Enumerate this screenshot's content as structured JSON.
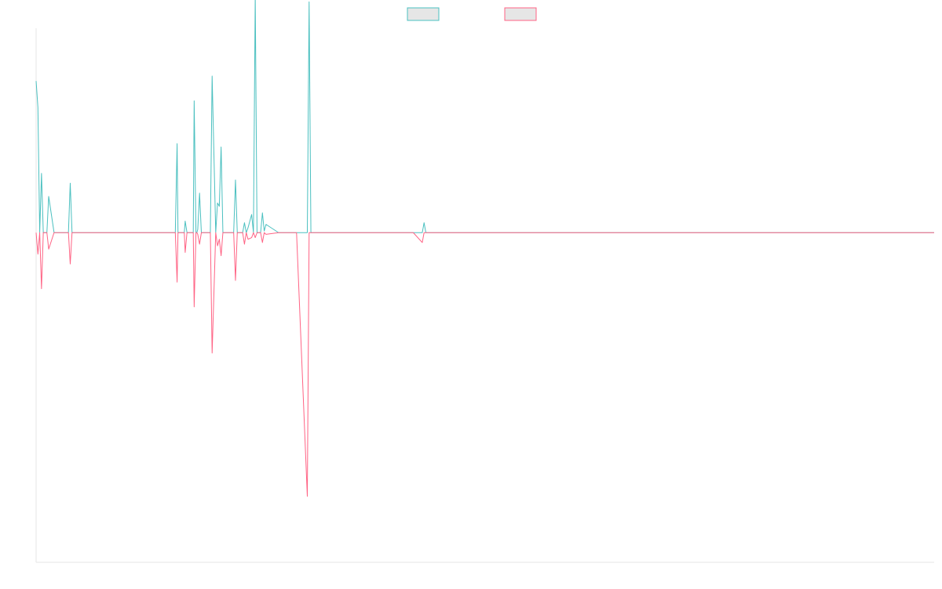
{
  "chart_data": {
    "type": "line",
    "title": "",
    "xlabel": "",
    "ylabel": "",
    "xlim": [
      0,
      1000
    ],
    "ylim": [
      -1.0,
      0.62
    ],
    "grid": false,
    "legend_position": "top-center",
    "series": [
      {
        "color": "#4bc0c0",
        "x": [
          0,
          2,
          4,
          6,
          8,
          12,
          14,
          20,
          22,
          24,
          26,
          36,
          38,
          40,
          42,
          60,
          62,
          64,
          155,
          157,
          158,
          160,
          165,
          166,
          168,
          170,
          175,
          176,
          178,
          179,
          180,
          182,
          184,
          186,
          190,
          192,
          194,
          196,
          200,
          202,
          204,
          206,
          208,
          210,
          212,
          216,
          218,
          220,
          222,
          224,
          226,
          230,
          232,
          234,
          236,
          240,
          242,
          244,
          246,
          250,
          252,
          254,
          256,
          270,
          272,
          274,
          278,
          282,
          284,
          286,
          288,
          290,
          302,
          304,
          306,
          308,
          310,
          312,
          314,
          320,
          372,
          374,
          376,
          420,
          430,
          432,
          434,
          440,
          500,
          1000
        ],
        "values": [
          0.46,
          0.38,
          0.0,
          0.18,
          0.0,
          0.0,
          0.11,
          0.0,
          0.0,
          0.0,
          0.0,
          0.0,
          0.15,
          0.0,
          0.0,
          0.0,
          0.0,
          0.0,
          0.0,
          0.27,
          0.0,
          0.0,
          0.0,
          0.035,
          0.0,
          0.0,
          0.0,
          0.4,
          0.0,
          0.0,
          0.01,
          0.12,
          0.0,
          0.0,
          0.0,
          0.0,
          0.0,
          0.475,
          0.0,
          0.09,
          0.08,
          0.26,
          0.0,
          0.0,
          0.0,
          0.0,
          0.0,
          0.0,
          0.16,
          0.0,
          0.0,
          0.0,
          0.03,
          0.0,
          0.015,
          0.055,
          0.0,
          0.72,
          0.0,
          0.0,
          0.06,
          0.005,
          0.025,
          0.0,
          0.0,
          0.0,
          0.0,
          0.0,
          0.0,
          0.0,
          0.0,
          0.0,
          0.0,
          0.7,
          0.0,
          0.0,
          0.0,
          0.0,
          0.0,
          0.0,
          0.0,
          0.0,
          0.0,
          0.0,
          0.0,
          0.03,
          0.0,
          0.0,
          0.0,
          0.0
        ],
        "name": ""
      },
      {
        "color": "#ff6384",
        "x": [
          0,
          2,
          4,
          6,
          8,
          12,
          14,
          20,
          22,
          24,
          26,
          36,
          38,
          40,
          42,
          60,
          62,
          64,
          155,
          157,
          158,
          160,
          165,
          166,
          168,
          170,
          175,
          176,
          178,
          179,
          180,
          182,
          184,
          186,
          190,
          192,
          194,
          196,
          200,
          202,
          204,
          206,
          208,
          210,
          212,
          216,
          218,
          220,
          222,
          224,
          226,
          230,
          232,
          234,
          236,
          240,
          242,
          244,
          246,
          250,
          252,
          254,
          256,
          270,
          272,
          274,
          278,
          282,
          284,
          286,
          288,
          290,
          302,
          304,
          306,
          308,
          310,
          312,
          314,
          320,
          372,
          374,
          376,
          420,
          430,
          432,
          434,
          440,
          500,
          1000
        ],
        "values": [
          0.0,
          -0.065,
          0.0,
          -0.17,
          0.0,
          0.0,
          -0.05,
          0.0,
          0.0,
          0.0,
          0.0,
          0.0,
          -0.095,
          0.0,
          0.0,
          0.0,
          0.0,
          0.0,
          0.0,
          -0.15,
          0.0,
          0.0,
          0.0,
          -0.06,
          0.0,
          0.0,
          0.0,
          -0.225,
          0.0,
          0.0,
          -0.005,
          -0.035,
          0.0,
          0.0,
          0.0,
          0.0,
          0.0,
          -0.365,
          0.0,
          -0.04,
          -0.02,
          -0.07,
          0.0,
          0.0,
          0.0,
          0.0,
          0.0,
          0.0,
          -0.145,
          0.0,
          0.0,
          0.0,
          -0.035,
          0.0,
          -0.02,
          -0.015,
          0.0,
          -0.015,
          0.0,
          0.0,
          -0.03,
          0.0,
          -0.005,
          0.0,
          0.0,
          0.0,
          0.0,
          0.0,
          0.0,
          0.0,
          0.0,
          0.0,
          -0.8,
          0.0,
          0.0,
          0.0,
          0.0,
          0.0,
          0.0,
          0.0,
          0.0,
          0.0,
          0.0,
          0.0,
          -0.03,
          0.0,
          0.0,
          0.0,
          0.0,
          0.0
        ],
        "name": ""
      }
    ]
  }
}
